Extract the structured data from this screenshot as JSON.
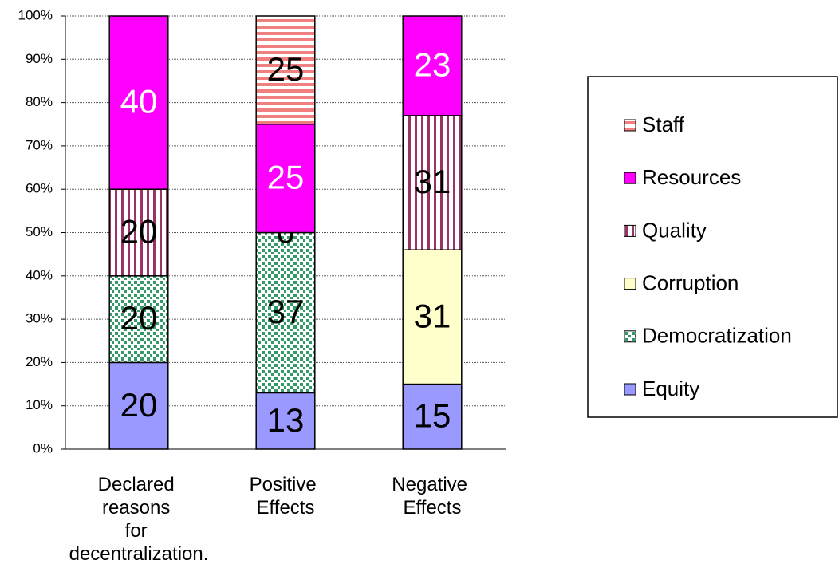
{
  "chart_data": {
    "type": "stacked_bar_100",
    "categories": [
      "Declared reasons for decentralization.",
      "Positive Effects",
      "Negative Effects"
    ],
    "series": [
      {
        "name": "Equity",
        "color": "#9999ff",
        "pattern": "solid",
        "label_color": "#000000",
        "values": [
          20,
          13,
          15
        ]
      },
      {
        "name": "Democratization",
        "color": "#339966",
        "pattern": "dots",
        "label_color": "#000000",
        "values": [
          20,
          37,
          null
        ]
      },
      {
        "name": "Corruption",
        "color": "#ffffcc",
        "pattern": "solid",
        "label_color": "#000000",
        "values": [
          null,
          null,
          31
        ]
      },
      {
        "name": "Quality",
        "color": "#993366",
        "pattern": "vstripes",
        "label_color": "#000000",
        "values": [
          20,
          0,
          31
        ]
      },
      {
        "name": "Resources",
        "color": "#ff00ff",
        "pattern": "solid",
        "label_color": "#ffffff",
        "values": [
          40,
          25,
          23
        ]
      },
      {
        "name": "Staff",
        "color": "#f08080",
        "pattern": "hstripes",
        "label_color": "#000000",
        "values": [
          null,
          25,
          null
        ]
      }
    ],
    "ylim": [
      0,
      100
    ],
    "yticks": [
      {
        "value": 0,
        "label": "0%"
      },
      {
        "value": 10,
        "label": "10%"
      },
      {
        "value": 20,
        "label": "20%"
      },
      {
        "value": 30,
        "label": "30%"
      },
      {
        "value": 40,
        "label": "40%"
      },
      {
        "value": 50,
        "label": "50%"
      },
      {
        "value": 60,
        "label": "60%"
      },
      {
        "value": 70,
        "label": "70%"
      },
      {
        "value": 80,
        "label": "80%"
      },
      {
        "value": 90,
        "label": "90%"
      },
      {
        "value": 100,
        "label": "100%"
      }
    ],
    "grid": true,
    "legend": "right"
  }
}
